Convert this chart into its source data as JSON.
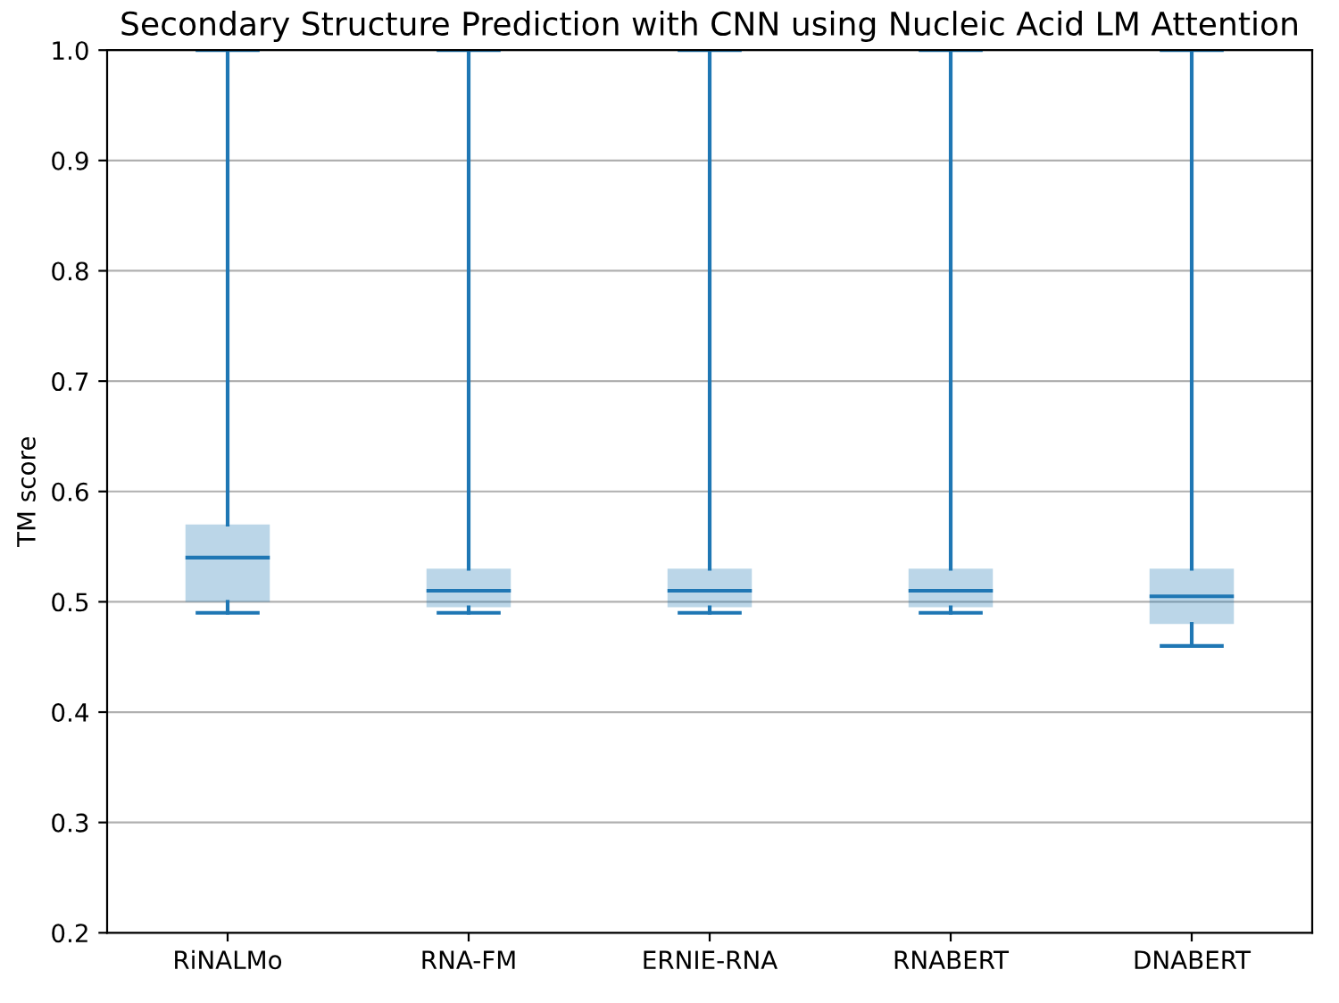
{
  "chart_data": {
    "type": "box",
    "title": "Secondary Structure Prediction with CNN using Nucleic Acid LM Attention",
    "ylabel": "TM score",
    "categories": [
      "RiNALMo",
      "RNA-FM",
      "ERNIE-RNA",
      "RNABERT",
      "DNABERT"
    ],
    "boxes": [
      {
        "low": 0.49,
        "q1": 0.5,
        "median": 0.54,
        "q3": 0.57,
        "high": 1.0
      },
      {
        "low": 0.49,
        "q1": 0.495,
        "median": 0.51,
        "q3": 0.53,
        "high": 1.0
      },
      {
        "low": 0.49,
        "q1": 0.495,
        "median": 0.51,
        "q3": 0.53,
        "high": 1.0
      },
      {
        "low": 0.49,
        "q1": 0.495,
        "median": 0.51,
        "q3": 0.53,
        "high": 1.0
      },
      {
        "low": 0.46,
        "q1": 0.48,
        "median": 0.505,
        "q3": 0.53,
        "high": 1.0
      }
    ],
    "color": "#1f77b4",
    "ylim": [
      0.2,
      1.0
    ],
    "yticks": [
      0.2,
      0.3,
      0.4,
      0.5,
      0.6,
      0.7,
      0.8,
      0.9,
      {
        "value": 1.0,
        "label": "1.0"
      }
    ],
    "grid": "y"
  }
}
